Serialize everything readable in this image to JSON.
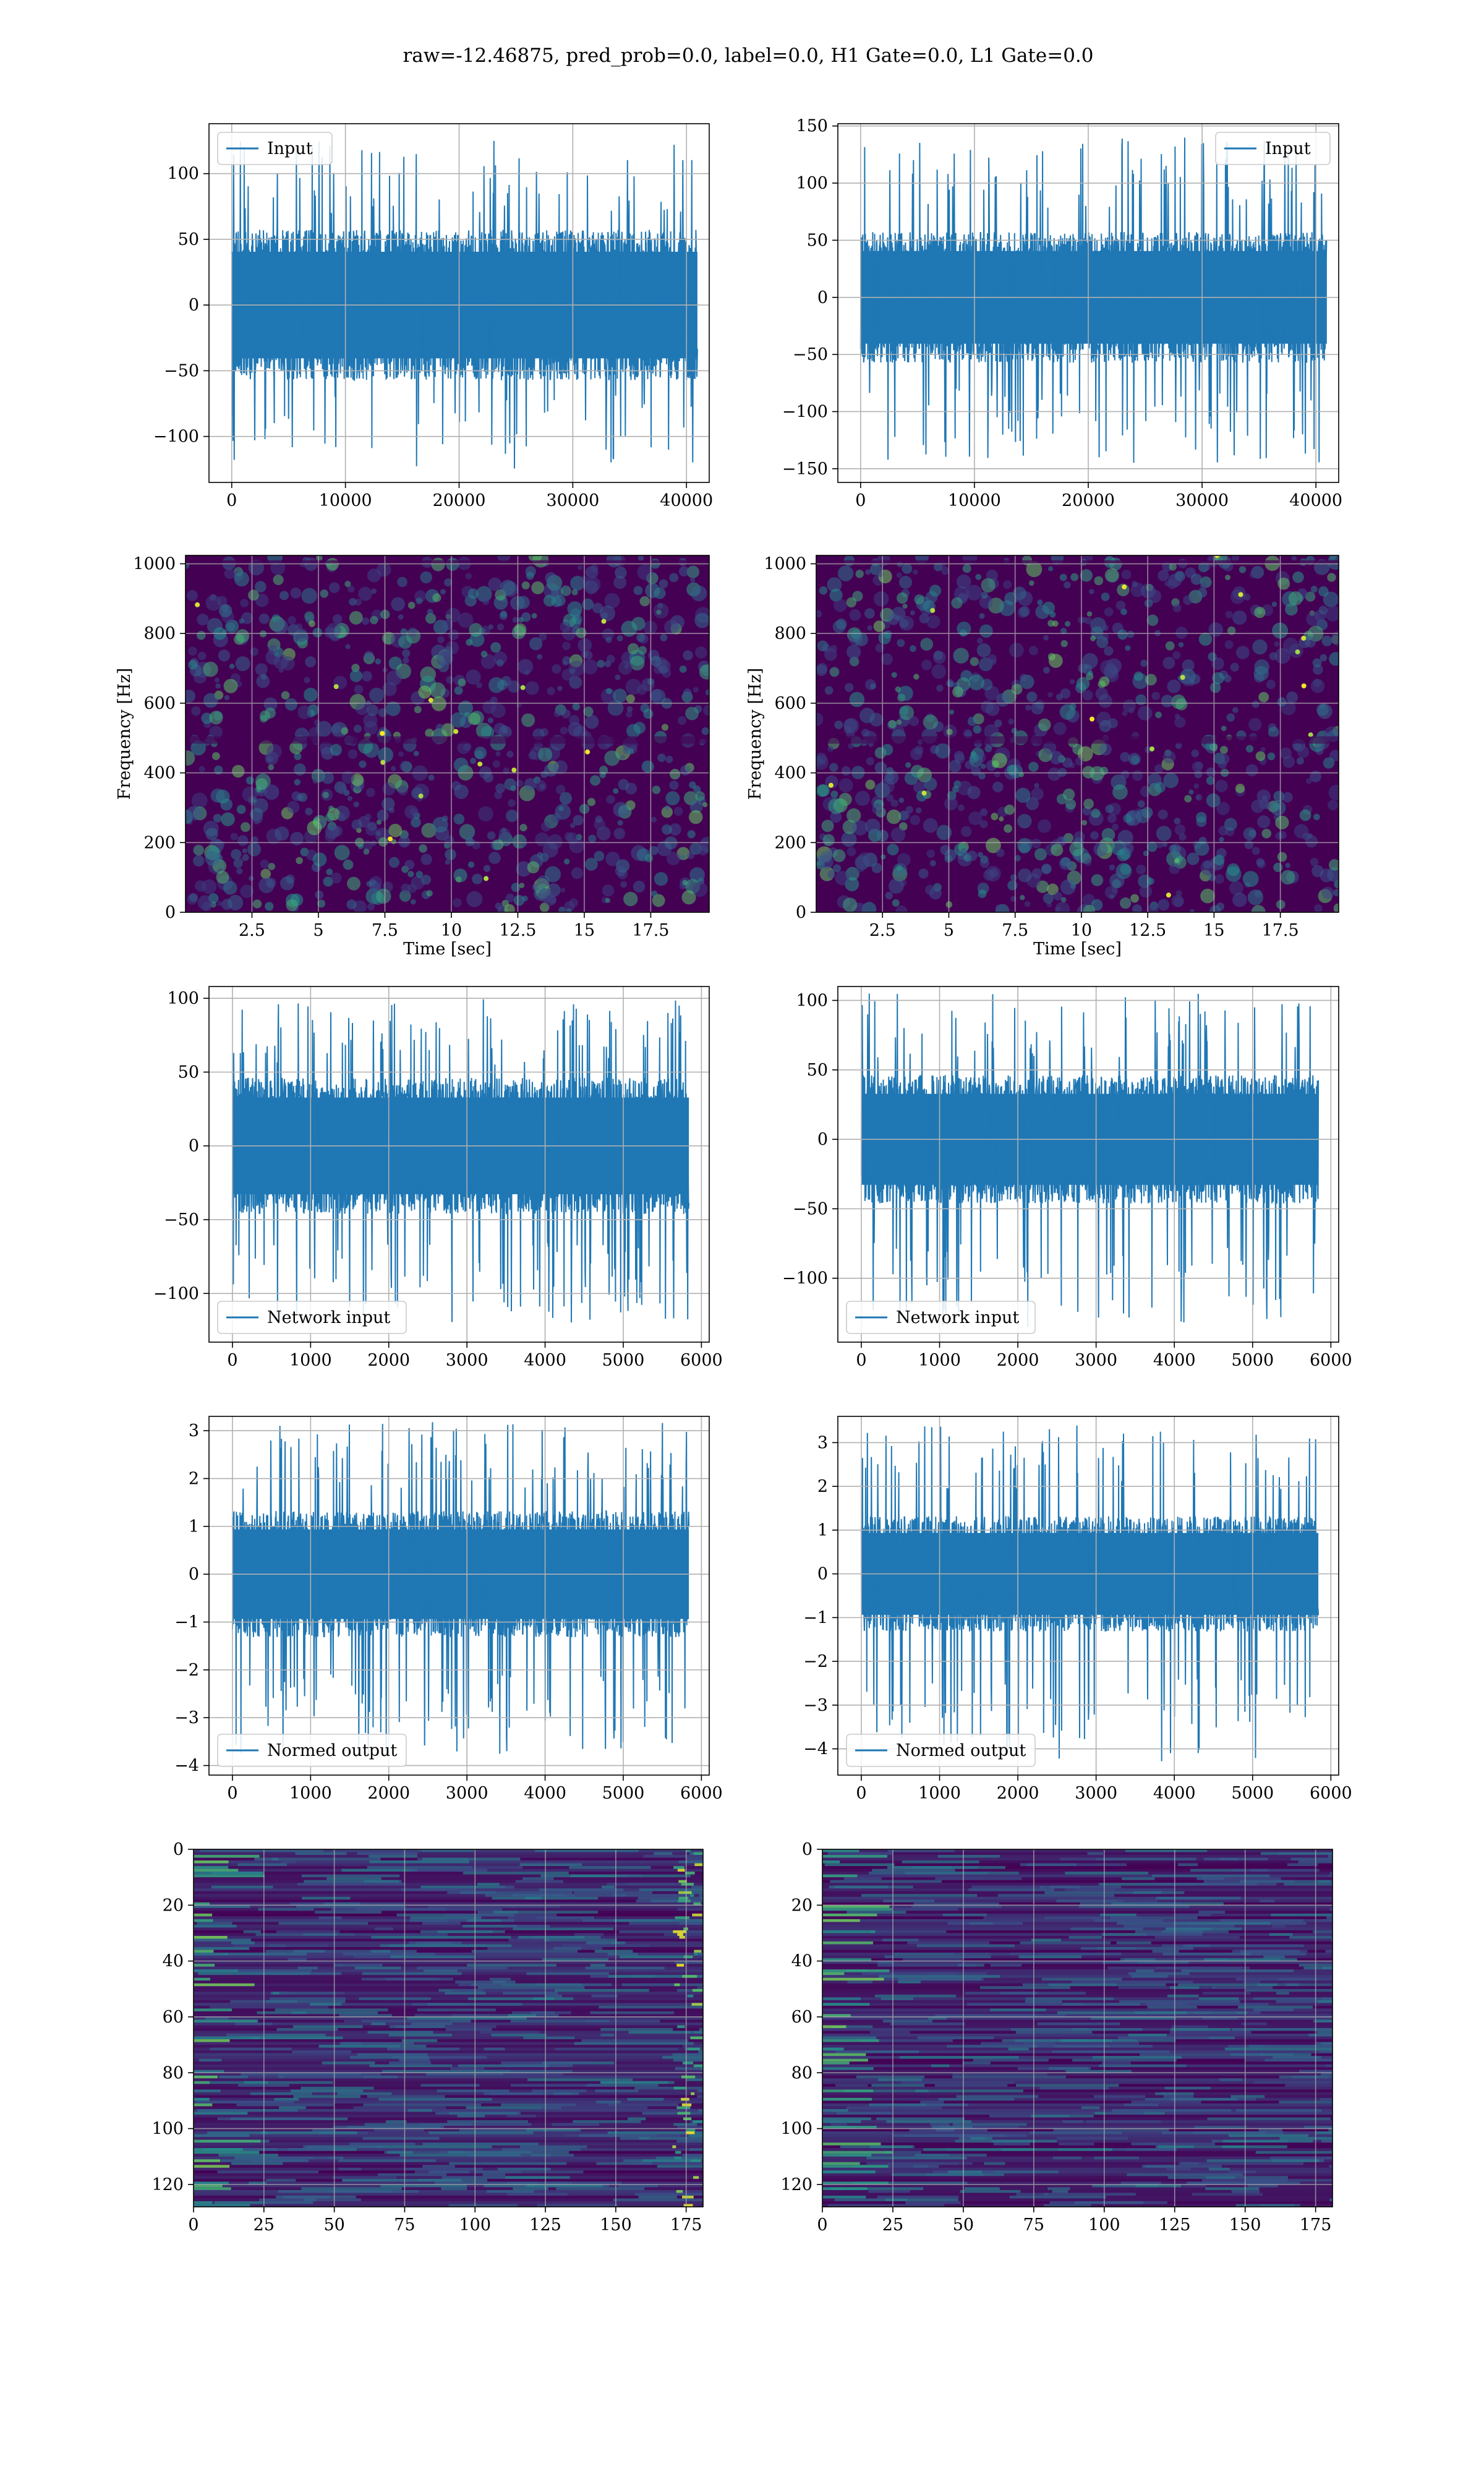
{
  "figure": {
    "suptitle": "raw=-12.46875, pred_prob=0.0, label=0.0, H1 Gate=0.0, L1 Gate=0.0"
  },
  "colors": {
    "line": "#1f77b4",
    "grid": "#b0b0b0",
    "spine": "#000000",
    "viridis_low": "#440154",
    "viridis_mid": "#21918c",
    "viridis_high": "#fde725"
  },
  "chart_data": [
    {
      "id": "r1l",
      "type": "line",
      "title": "",
      "xlabel": "",
      "ylabel": "",
      "xlim": [
        -2000,
        42000
      ],
      "ylim": [
        -135,
        138
      ],
      "xticks": [
        0,
        10000,
        20000,
        30000,
        40000
      ],
      "yticks": [
        -100,
        -50,
        0,
        50,
        100
      ],
      "grid": true,
      "legend": "upper left",
      "series": [
        {
          "name": "Input",
          "x_range": [
            0,
            40960
          ],
          "band": [
            -52,
            52
          ],
          "spikes": [
            -125,
            125
          ]
        }
      ]
    },
    {
      "id": "r1r",
      "type": "line",
      "title": "",
      "xlabel": "",
      "ylabel": "",
      "xlim": [
        -2000,
        42000
      ],
      "ylim": [
        -162,
        152
      ],
      "xticks": [
        0,
        10000,
        20000,
        30000,
        40000
      ],
      "yticks": [
        -150,
        -100,
        -50,
        0,
        50,
        100,
        150
      ],
      "grid": true,
      "legend": "upper right",
      "series": [
        {
          "name": "Input",
          "x_range": [
            0,
            40960
          ],
          "band": [
            -52,
            52
          ],
          "spikes": [
            -145,
            140
          ]
        }
      ]
    },
    {
      "id": "r2l",
      "type": "heatmap",
      "title": "",
      "xlabel": "Time [sec]",
      "ylabel": "Frequency [Hz]",
      "xlim": [
        0,
        19.7
      ],
      "ylim": [
        0,
        1024
      ],
      "xticks": [
        2.5,
        5.0,
        7.5,
        10.0,
        12.5,
        15.0,
        17.5
      ],
      "yticks": [
        0,
        200,
        400,
        600,
        800,
        1000
      ],
      "grid": true,
      "colormap": "viridis"
    },
    {
      "id": "r2r",
      "type": "heatmap",
      "title": "",
      "xlabel": "Time [sec]",
      "ylabel": "Frequency [Hz]",
      "xlim": [
        0,
        19.7
      ],
      "ylim": [
        0,
        1024
      ],
      "xticks": [
        2.5,
        5.0,
        7.5,
        10.0,
        12.5,
        15.0,
        17.5
      ],
      "yticks": [
        0,
        200,
        400,
        600,
        800,
        1000
      ],
      "grid": true,
      "colormap": "viridis"
    },
    {
      "id": "r3l",
      "type": "line",
      "title": "",
      "xlabel": "",
      "ylabel": "",
      "xlim": [
        -300,
        6100
      ],
      "ylim": [
        -133,
        108
      ],
      "xticks": [
        0,
        1000,
        2000,
        3000,
        4000,
        5000,
        6000
      ],
      "yticks": [
        -100,
        -50,
        0,
        50,
        100
      ],
      "grid": true,
      "legend": "lower left",
      "series": [
        {
          "name": "Network input",
          "x_range": [
            0,
            5840
          ],
          "band": [
            -42,
            42
          ],
          "spikes": [
            -120,
            100
          ]
        }
      ]
    },
    {
      "id": "r3r",
      "type": "line",
      "title": "",
      "xlabel": "",
      "ylabel": "",
      "xlim": [
        -300,
        6100
      ],
      "ylim": [
        -146,
        110
      ],
      "xticks": [
        0,
        1000,
        2000,
        3000,
        4000,
        5000,
        6000
      ],
      "yticks": [
        -100,
        -50,
        0,
        50,
        100
      ],
      "grid": true,
      "legend": "lower left",
      "series": [
        {
          "name": "Network input",
          "x_range": [
            0,
            5840
          ],
          "band": [
            -42,
            42
          ],
          "spikes": [
            -135,
            105
          ]
        }
      ]
    },
    {
      "id": "r4l",
      "type": "line",
      "title": "",
      "xlabel": "",
      "ylabel": "",
      "xlim": [
        -300,
        6100
      ],
      "ylim": [
        -4.2,
        3.3
      ],
      "xticks": [
        0,
        1000,
        2000,
        3000,
        4000,
        5000,
        6000
      ],
      "yticks": [
        -4,
        -3,
        -2,
        -1,
        0,
        1,
        2,
        3
      ],
      "grid": true,
      "legend": "lower left",
      "series": [
        {
          "name": "Normed output",
          "x_range": [
            0,
            5840
          ],
          "band": [
            -1.2,
            1.2
          ],
          "spikes": [
            -3.8,
            3.2
          ]
        }
      ]
    },
    {
      "id": "r4r",
      "type": "line",
      "title": "",
      "xlabel": "",
      "ylabel": "",
      "xlim": [
        -300,
        6100
      ],
      "ylim": [
        -4.6,
        3.6
      ],
      "xticks": [
        0,
        1000,
        2000,
        3000,
        4000,
        5000,
        6000
      ],
      "yticks": [
        -4,
        -3,
        -2,
        -1,
        0,
        1,
        2,
        3
      ],
      "grid": true,
      "legend": "lower left",
      "series": [
        {
          "name": "Normed output",
          "x_range": [
            0,
            5840
          ],
          "band": [
            -1.2,
            1.2
          ],
          "spikes": [
            -4.3,
            3.4
          ]
        }
      ]
    },
    {
      "id": "r5l",
      "type": "heatmap",
      "title": "",
      "xlabel": "",
      "ylabel": "",
      "xlim": [
        0,
        181
      ],
      "ylim": [
        128,
        0
      ],
      "xticks": [
        0,
        25,
        50,
        75,
        100,
        125,
        150,
        175
      ],
      "yticks": [
        0,
        20,
        40,
        60,
        80,
        100,
        120
      ],
      "grid": true,
      "colormap": "viridis"
    },
    {
      "id": "r5r",
      "type": "heatmap",
      "title": "",
      "xlabel": "",
      "ylabel": "",
      "xlim": [
        0,
        181
      ],
      "ylim": [
        128,
        0
      ],
      "xticks": [
        0,
        25,
        50,
        75,
        100,
        125,
        150,
        175
      ],
      "yticks": [
        0,
        20,
        40,
        60,
        80,
        100,
        120
      ],
      "grid": true,
      "colormap": "viridis"
    }
  ]
}
